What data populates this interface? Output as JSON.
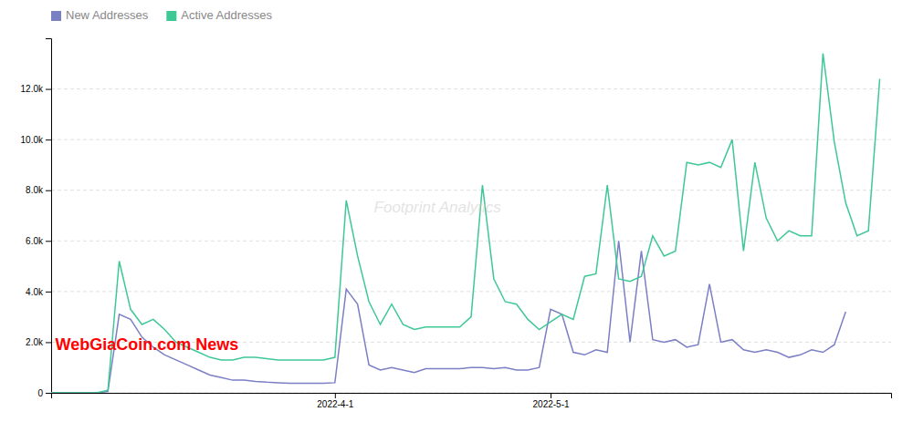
{
  "chart_data": {
    "type": "line",
    "x": [
      0,
      1,
      2,
      3,
      4,
      5,
      6,
      7,
      8,
      9,
      10,
      11,
      12,
      13,
      14,
      15,
      16,
      17,
      18,
      19,
      20,
      21,
      22,
      23,
      24,
      25,
      26,
      27,
      28,
      29,
      30,
      31,
      32,
      33,
      34,
      35,
      36,
      37,
      38,
      39,
      40,
      41,
      42,
      43,
      44,
      45,
      46,
      47,
      48,
      49,
      50,
      51,
      52,
      53,
      54,
      55,
      56,
      57,
      58,
      59,
      60,
      61,
      62,
      63,
      64,
      65,
      66,
      67,
      68,
      69,
      70,
      71,
      72,
      73
    ],
    "series": [
      {
        "name": "New Addresses",
        "color": "#7B7FC4",
        "values": [
          0,
          0,
          0,
          0,
          0,
          50,
          3100,
          2900,
          2200,
          1800,
          1500,
          1300,
          1100,
          900,
          700,
          600,
          500,
          500,
          450,
          420,
          400,
          380,
          380,
          380,
          380,
          400,
          4100,
          3500,
          1100,
          900,
          1000,
          900,
          800,
          950,
          950,
          950,
          950,
          1000,
          1000,
          950,
          1000,
          900,
          900,
          1000,
          3300,
          3100,
          1600,
          1500,
          1700,
          1600,
          6000,
          2000,
          5600,
          2100,
          2000,
          2100,
          1800,
          1900,
          4300,
          2000,
          2100,
          1700,
          1600,
          1700,
          1600,
          1400,
          1500,
          1700,
          1600,
          1900,
          3200,
          null,
          null,
          null
        ]
      },
      {
        "name": "Active Addresses",
        "color": "#3ec896",
        "values": [
          0,
          0,
          0,
          0,
          0,
          100,
          5200,
          3300,
          2700,
          2900,
          2500,
          2000,
          1800,
          1600,
          1400,
          1300,
          1300,
          1400,
          1400,
          1350,
          1300,
          1300,
          1300,
          1300,
          1300,
          1400,
          7600,
          5400,
          3600,
          2700,
          3500,
          2700,
          2500,
          2600,
          2600,
          2600,
          2600,
          3000,
          8200,
          4500,
          3600,
          3500,
          2900,
          2500,
          2800,
          3100,
          2900,
          4600,
          4700,
          8200,
          4500,
          4400,
          4600,
          6200,
          5400,
          5600,
          9100,
          9000,
          9100,
          8900,
          10000,
          5600,
          9100,
          6900,
          6000,
          6400,
          6200,
          6200,
          13400,
          9900,
          7500,
          6200,
          6400,
          12400
        ]
      }
    ],
    "xlim": [
      0,
      74
    ],
    "xticks": [
      {
        "value": 25,
        "label": "2022-4-1"
      },
      {
        "value": 44,
        "label": "2022-5-1"
      }
    ],
    "ylim": [
      0,
      14000
    ],
    "yticks": [
      0,
      {
        "value": 2000,
        "label": "2.0k"
      },
      {
        "value": 4000,
        "label": "4.0k"
      },
      {
        "value": 6000,
        "label": "6.0k"
      },
      {
        "value": 8000,
        "label": "8.0k"
      },
      {
        "value": 10000,
        "label": "10.0k"
      },
      {
        "value": 12000,
        "label": "12.0k"
      }
    ],
    "grid": true,
    "legend": "upper-left",
    "annotations": [
      {
        "text": "Footprint Analytics"
      },
      {
        "text": "WebGiaCoin.com News",
        "color": "red"
      }
    ]
  }
}
